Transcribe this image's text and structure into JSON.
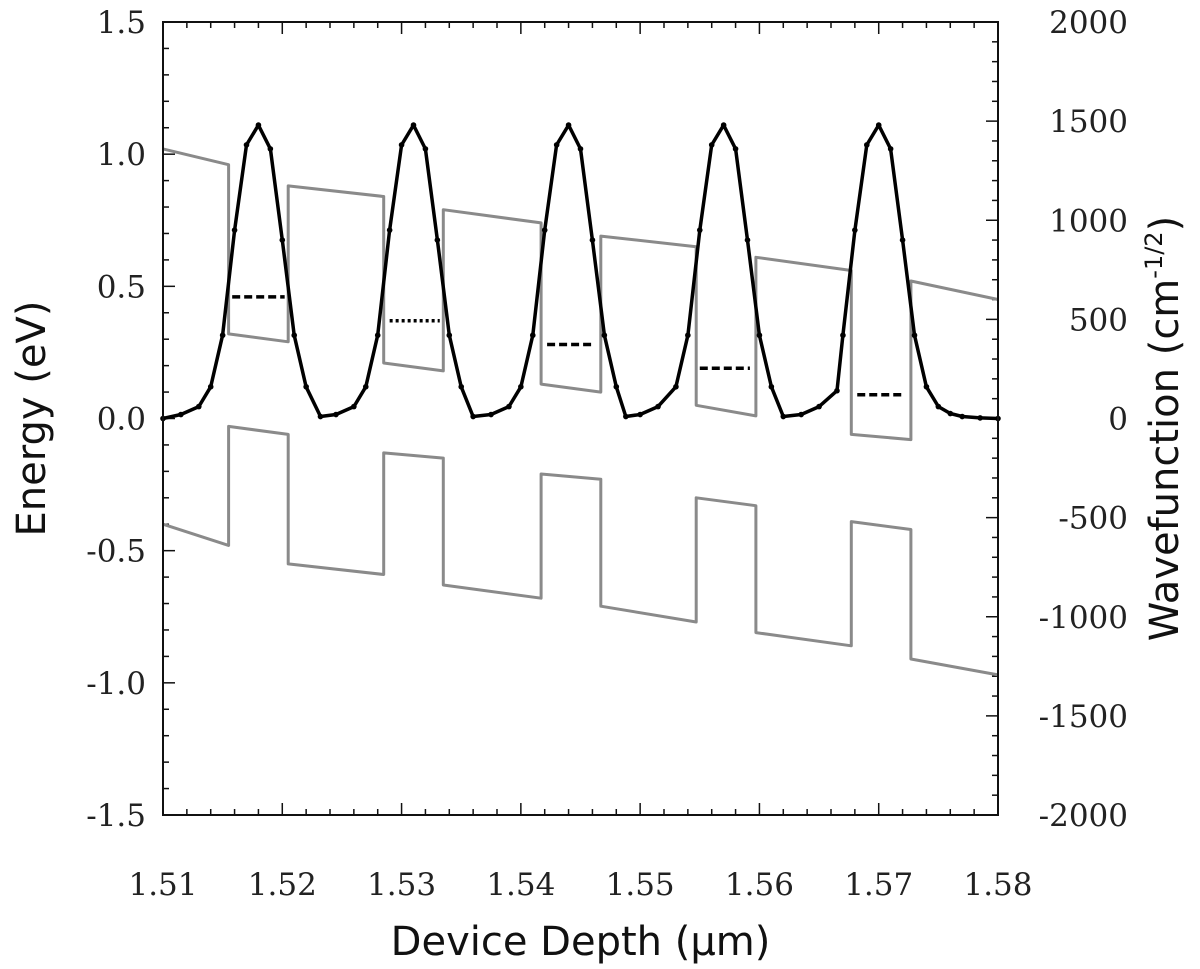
{
  "chart_data": {
    "type": "line",
    "xlabel": "Device Depth (μm)",
    "ylabel_left": "Energy (eV)",
    "ylabel_right_main": "Wavefunction (cm",
    "ylabel_right_sup": "-1/2",
    "ylabel_right_close": ")",
    "xlim": [
      1.51,
      1.58
    ],
    "ylim_left": [
      -1.5,
      1.5
    ],
    "ylim_right": [
      -2000,
      2000
    ],
    "x_ticks": [
      "1.51",
      "1.52",
      "1.53",
      "1.54",
      "1.55",
      "1.56",
      "1.57",
      "1.58"
    ],
    "x_tick_values": [
      1.51,
      1.52,
      1.53,
      1.54,
      1.55,
      1.56,
      1.57,
      1.58
    ],
    "y_left_ticks": [
      "-1.5",
      "-1.0",
      "-0.5",
      "0.0",
      "0.5",
      "1.0",
      "1.5"
    ],
    "y_left_tick_values": [
      -1.5,
      -1.0,
      -0.5,
      0.0,
      0.5,
      1.0,
      1.5
    ],
    "y_right_ticks": [
      "-2000",
      "-1500",
      "-1000",
      "-500",
      "0",
      "500",
      "1000",
      "1500",
      "2000"
    ],
    "y_right_tick_values": [
      -2000,
      -1500,
      -1000,
      -500,
      0,
      500,
      1000,
      1500,
      2000
    ],
    "colors": {
      "band": "#8a8a8a",
      "wavefunction": "#000000",
      "axis": "#111111"
    },
    "series": [
      {
        "axis": "left",
        "color": "#8a8a8a",
        "x": [
          1.51,
          1.5155,
          1.5155,
          1.5205,
          1.5205,
          1.5285,
          1.5285,
          1.5335,
          1.5335,
          1.5417,
          1.5417,
          1.5467,
          1.5467,
          1.5547,
          1.5547,
          1.5597,
          1.5597,
          1.5677,
          1.5677,
          1.5727,
          1.5727,
          1.58
        ],
        "y": [
          1.02,
          0.96,
          0.32,
          0.29,
          0.88,
          0.84,
          0.21,
          0.18,
          0.79,
          0.74,
          0.13,
          0.1,
          0.69,
          0.65,
          0.05,
          0.01,
          0.61,
          0.56,
          -0.06,
          -0.08,
          0.52,
          0.45
        ]
      },
      {
        "axis": "left",
        "color": "#8a8a8a",
        "x": [
          1.51,
          1.5155,
          1.5155,
          1.5205,
          1.5205,
          1.5285,
          1.5285,
          1.5335,
          1.5335,
          1.5417,
          1.5417,
          1.5467,
          1.5467,
          1.5547,
          1.5547,
          1.5597,
          1.5597,
          1.5677,
          1.5677,
          1.5727,
          1.5727,
          1.58
        ],
        "y": [
          -0.4,
          -0.48,
          -0.03,
          -0.06,
          -0.55,
          -0.59,
          -0.13,
          -0.15,
          -0.63,
          -0.68,
          -0.21,
          -0.23,
          -0.71,
          -0.77,
          -0.3,
          -0.33,
          -0.81,
          -0.86,
          -0.39,
          -0.42,
          -0.91,
          -0.97
        ]
      },
      {
        "axis": "right",
        "color": "#000000",
        "x": [
          1.51,
          1.5115,
          1.513,
          1.514,
          1.515,
          1.516,
          1.517,
          1.518,
          1.519,
          1.52,
          1.521,
          1.522,
          1.5232,
          1.5245,
          1.526,
          1.527,
          1.528,
          1.529,
          1.53,
          1.531,
          1.532,
          1.533,
          1.534,
          1.535,
          1.536,
          1.5375,
          1.539,
          1.54,
          1.541,
          1.542,
          1.543,
          1.544,
          1.545,
          1.546,
          1.547,
          1.548,
          1.5488,
          1.55,
          1.5515,
          1.553,
          1.554,
          1.555,
          1.556,
          1.557,
          1.558,
          1.559,
          1.56,
          1.561,
          1.562,
          1.5635,
          1.565,
          1.5665,
          1.567,
          1.568,
          1.569,
          1.57,
          1.571,
          1.572,
          1.573,
          1.574,
          1.575,
          1.576,
          1.577,
          1.5785,
          1.58
        ],
        "y": [
          0,
          20,
          60,
          160,
          420,
          950,
          1380,
          1480,
          1360,
          900,
          420,
          160,
          10,
          20,
          60,
          160,
          420,
          950,
          1380,
          1480,
          1360,
          900,
          420,
          160,
          10,
          20,
          60,
          160,
          420,
          950,
          1380,
          1480,
          1360,
          900,
          420,
          160,
          10,
          20,
          60,
          160,
          420,
          950,
          1380,
          1480,
          1360,
          900,
          420,
          160,
          10,
          20,
          60,
          140,
          420,
          950,
          1380,
          1480,
          1360,
          900,
          420,
          160,
          60,
          25,
          10,
          3,
          0
        ]
      }
    ],
    "energy_levels": [
      {
        "x": [
          1.5158,
          1.5202
        ],
        "y": 0.46,
        "style": "dashed"
      },
      {
        "x": [
          1.529,
          1.5332
        ],
        "y": 0.37,
        "style": "dotted"
      },
      {
        "x": [
          1.5422,
          1.5462
        ],
        "y": 0.28,
        "style": "dashed"
      },
      {
        "x": [
          1.555,
          1.5592
        ],
        "y": 0.19,
        "style": "dashed"
      },
      {
        "x": [
          1.5682,
          1.5722
        ],
        "y": 0.09,
        "style": "dashed"
      }
    ]
  }
}
